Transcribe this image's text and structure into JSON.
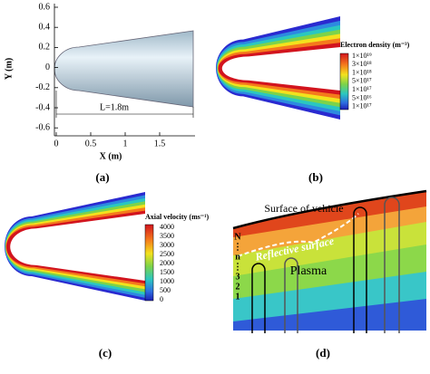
{
  "panel_a": {
    "y_label": "Y (m)",
    "x_label": "X (m)",
    "yticks": [
      "0.6",
      "0.4",
      "0.2",
      "0",
      "-0.2",
      "-0.4",
      "-0.6"
    ],
    "xticks": [
      "0",
      "0.5",
      "1",
      "1.5"
    ],
    "length_label": "L=1.8m",
    "caption": "(a)"
  },
  "panel_b": {
    "legend_title": "Electron density (m⁻³)",
    "legend_labels": [
      "1×10¹⁹",
      "3×10¹⁸",
      "1×10¹⁸",
      "5×10¹⁷",
      "1×10¹⁷",
      "5×10¹⁶",
      "1×10¹⁷"
    ],
    "caption": "(b)"
  },
  "panel_c": {
    "legend_title": "Axial velocity (ms⁻¹)",
    "legend_labels": [
      "4000",
      "3500",
      "3000",
      "2500",
      "2000",
      "1500",
      "1000",
      "500",
      "0"
    ],
    "caption": "(c)"
  },
  "panel_d": {
    "surface_label": "Surface of vehicle",
    "reflective_label": "Reflective surface",
    "plasma_label": "Plasma",
    "layer_labels": [
      "N",
      "⋮",
      "n",
      "⋮",
      "3",
      "2",
      "1"
    ],
    "caption": "(d)"
  }
}
